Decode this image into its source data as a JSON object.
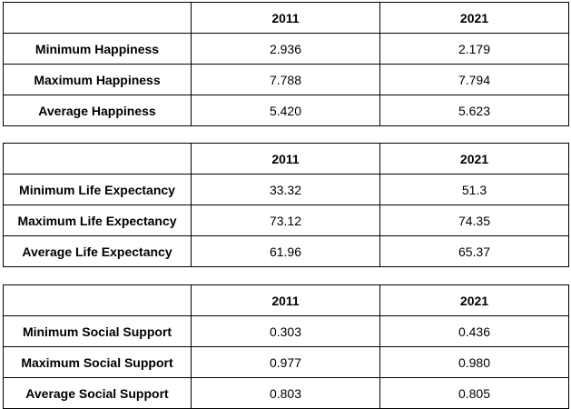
{
  "tables": [
    {
      "headers": [
        "",
        "2011",
        "2021"
      ],
      "rows": [
        {
          "label": "Minimum Happiness",
          "values": [
            "2.936",
            "2.179"
          ]
        },
        {
          "label": "Maximum Happiness",
          "values": [
            "7.788",
            "7.794"
          ]
        },
        {
          "label": "Average Happiness",
          "values": [
            "5.420",
            "5.623"
          ]
        }
      ]
    },
    {
      "headers": [
        "",
        "2011",
        "2021"
      ],
      "rows": [
        {
          "label": "Minimum Life Expectancy",
          "values": [
            "33.32",
            "51.3"
          ]
        },
        {
          "label": "Maximum Life Expectancy",
          "values": [
            "73.12",
            "74.35"
          ]
        },
        {
          "label": "Average Life Expectancy",
          "values": [
            "61.96",
            "65.37"
          ]
        }
      ]
    },
    {
      "headers": [
        "",
        "2011",
        "2021"
      ],
      "rows": [
        {
          "label": "Minimum Social Support",
          "values": [
            "0.303",
            "0.436"
          ]
        },
        {
          "label": "Maximum Social Support",
          "values": [
            "0.977",
            "0.980"
          ]
        },
        {
          "label": "Average Social Support",
          "values": [
            "0.803",
            "0.805"
          ]
        }
      ]
    }
  ]
}
